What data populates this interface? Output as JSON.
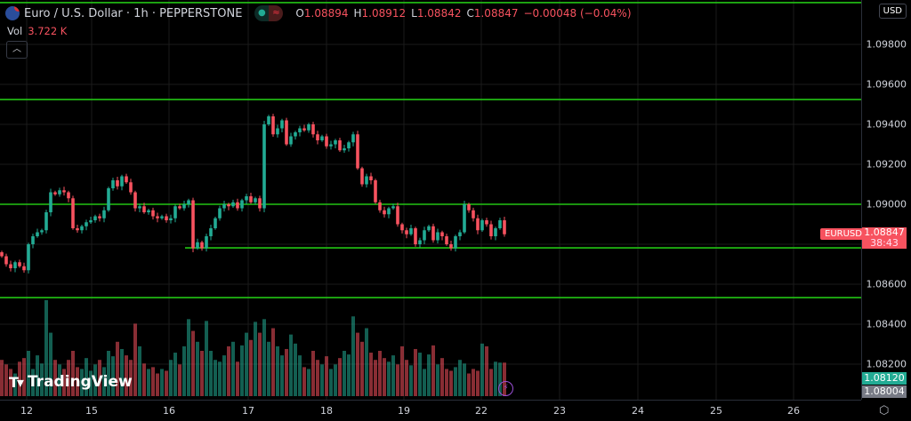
{
  "header": {
    "title": "Euro / U.S. Dollar · 1h · PEPPERSTONE",
    "ohlc": {
      "o_label": "O",
      "o": "1.08894",
      "h_label": "H",
      "h": "1.08912",
      "l_label": "L",
      "l": "1.08842",
      "c_label": "C",
      "c": "1.08847",
      "change": "−0.00048 (−0.04%)"
    },
    "vol_label": "Vol",
    "vol_value": "3.722 K",
    "collapse_icon": "chevron-up-icon"
  },
  "price_axis": {
    "currency_button": "USD",
    "labels": [
      "1.09800",
      "1.09600",
      "1.09400",
      "1.09200",
      "1.09000",
      "1.08600",
      "1.08400",
      "1.08200"
    ],
    "symbol_tag": "EURUSD",
    "last_price": "1.08847",
    "countdown": "38:43",
    "tag_green": "1.08120",
    "tag_gray": "1.08004"
  },
  "time_axis": {
    "labels": [
      "12",
      "15",
      "16",
      "17",
      "18",
      "19",
      "22",
      "23",
      "24",
      "25",
      "26"
    ]
  },
  "branding": {
    "logo_text": "TradingView"
  },
  "colors": {
    "up": "#22ab94",
    "down": "#f7525f",
    "hline": "#22c414",
    "grid": "#1a1a1a"
  },
  "chart_data": {
    "type": "candlestick",
    "price_range": [
      1.08,
      1.1
    ],
    "horizontal_levels": [
      1.10009,
      1.09524,
      1.09,
      1.08782,
      1.08533
    ],
    "first_open": 1.0876,
    "closes": [
      1.0874,
      1.087,
      1.0868,
      1.0871,
      1.0869,
      1.0867,
      1.088,
      1.0884,
      1.0886,
      1.0887,
      1.0896,
      1.0906,
      1.0905,
      1.0907,
      1.0906,
      1.0903,
      1.0888,
      1.0887,
      1.0889,
      1.0891,
      1.0892,
      1.0894,
      1.0893,
      1.0897,
      1.0908,
      1.0912,
      1.0909,
      1.0914,
      1.0911,
      1.0906,
      1.0898,
      1.0899,
      1.0896,
      1.0897,
      1.0894,
      1.0893,
      1.0894,
      1.0892,
      1.0893,
      1.0899,
      1.0898,
      1.09,
      1.0902,
      1.0878,
      1.0881,
      1.0878,
      1.0884,
      1.0888,
      1.0893,
      1.0898,
      1.09,
      1.0899,
      1.0901,
      1.0898,
      1.0902,
      1.0904,
      1.0901,
      1.0903,
      1.0898,
      1.094,
      1.0944,
      1.0935,
      1.0938,
      1.0942,
      1.093,
      1.0934,
      1.0936,
      1.0938,
      1.0937,
      1.094,
      1.0935,
      1.0932,
      1.0934,
      1.0929,
      1.093,
      1.0932,
      1.0927,
      1.0928,
      1.0931,
      1.0935,
      1.0918,
      1.091,
      1.0914,
      1.0912,
      1.0901,
      1.0897,
      1.0895,
      1.0898,
      1.0899,
      1.089,
      1.0887,
      1.0885,
      1.0888,
      1.088,
      1.0882,
      1.0887,
      1.0889,
      1.0882,
      1.0886,
      1.0884,
      1.088,
      1.0878,
      1.0884,
      1.0886,
      1.09,
      1.0897,
      1.0893,
      1.0887,
      1.0892,
      1.089,
      1.0884,
      1.0888,
      1.0892,
      1.0885
    ],
    "volumes_k": [
      4,
      3.5,
      3,
      2.5,
      3.8,
      4.2,
      5,
      3,
      4.5,
      3.6,
      10.6,
      7,
      4,
      3.5,
      3,
      4,
      5,
      3.2,
      3,
      4.2,
      2.8,
      3.5,
      4,
      3.2,
      5,
      4.4,
      6,
      5.2,
      4.5,
      4,
      8,
      5.5,
      3.6,
      3,
      3.2,
      2.5,
      3,
      2.8,
      4,
      4.8,
      3.5,
      5.5,
      8.5,
      7.2,
      6,
      5,
      8.3,
      5,
      4,
      3.8,
      4.5,
      5.5,
      6,
      3.8,
      5.6,
      7,
      6.2,
      8.2,
      7,
      8.5,
      6,
      7.5,
      5.5,
      4.5,
      5.2,
      6.8,
      5.8,
      4.5,
      3.2,
      3,
      5,
      4,
      3.5,
      4.4,
      3,
      3.5,
      4.2,
      5,
      4.6,
      8.8,
      7,
      6,
      7.5,
      4.8,
      4,
      5,
      4.2,
      3.8,
      4.5,
      3.5,
      5.5,
      4,
      3.4,
      5.2,
      4.8,
      3,
      4.6,
      5.6,
      3.5,
      4.2,
      3,
      2.8,
      3.2,
      4,
      3.6,
      2.5,
      3,
      2.8,
      5.8,
      5.5,
      3,
      3.8,
      3.7,
      3.7
    ]
  }
}
